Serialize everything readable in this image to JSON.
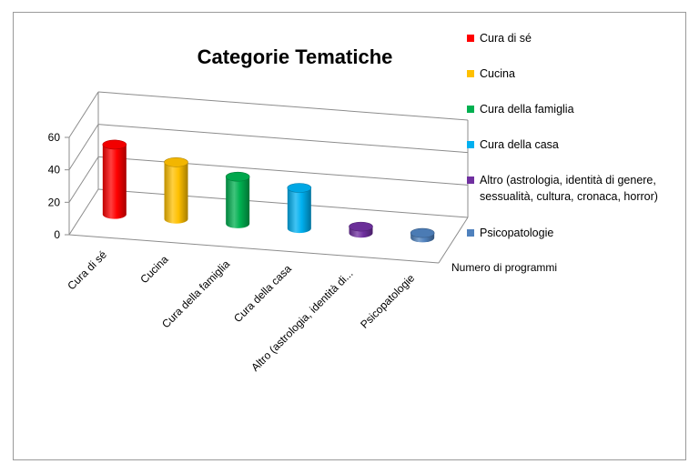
{
  "chart_data": {
    "type": "bar",
    "title": "Categorie Tematiche",
    "categories": [
      "Cura di sé",
      "Cucina",
      "Cura della famiglia",
      "Cura della casa",
      "Altro (astrologia, identità di...",
      "Psicopatologie"
    ],
    "series": [
      {
        "name": "Numero di programmi",
        "values": [
          43,
          35,
          29,
          25,
          4,
          3
        ]
      }
    ],
    "ylim": [
      0,
      60
    ],
    "yticks": [
      "0",
      "20",
      "40",
      "60"
    ],
    "grid": true,
    "legend_position": "right",
    "legend": [
      {
        "label": "Cura di sé",
        "color": "#ff0000"
      },
      {
        "label": "Cucina",
        "color": "#ffc000"
      },
      {
        "label": "Cura della famiglia",
        "color": "#00b050"
      },
      {
        "label": "Cura della casa",
        "color": "#00b0f0"
      },
      {
        "label": "Altro (astrologia, identità di genere,\nsessualità, cultura, cronaca, horror)",
        "color": "#7030a0"
      },
      {
        "label": "Psicopatologie",
        "color": "#4f81bd"
      }
    ],
    "bar_colors": [
      "#ff0000",
      "#ffc000",
      "#00b050",
      "#00b0f0",
      "#7030a0",
      "#4f81bd"
    ]
  }
}
